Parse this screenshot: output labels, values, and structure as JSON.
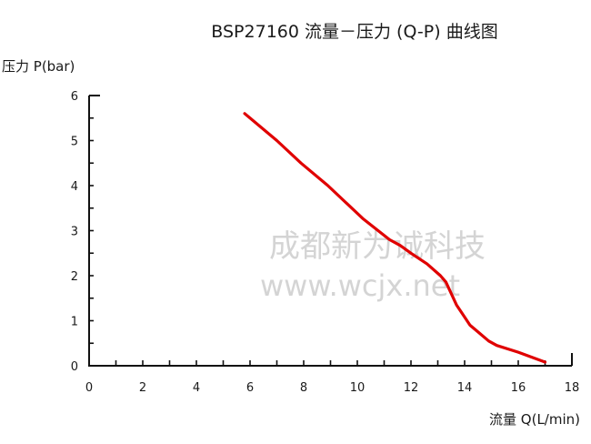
{
  "chart_data": {
    "type": "line",
    "title": "BSP27160 流量－压力 (Q-P) 曲线图",
    "xlabel": "流量 Q(L/min)",
    "ylabel": "压力 P(bar)",
    "xlim": [
      0,
      18
    ],
    "ylim": [
      0,
      6
    ],
    "x_ticks": [
      0,
      2,
      4,
      6,
      8,
      10,
      12,
      14,
      16,
      18
    ],
    "x_minor_step": 1,
    "y_ticks": [
      0,
      1,
      2,
      3,
      4,
      5,
      6
    ],
    "y_minor_step": 0.5,
    "grid": false,
    "legend": null,
    "series": [
      {
        "name": "BSP27160 Q-P",
        "color": "#e00000",
        "x": [
          5.8,
          7.0,
          7.9,
          8.9,
          10.2,
          11.2,
          11.6,
          12.0,
          12.6,
          13.1,
          13.3,
          13.7,
          14.2,
          14.5,
          14.9,
          15.2,
          16.0,
          17.0
        ],
        "y": [
          5.6,
          5.0,
          4.5,
          4.0,
          3.27,
          2.8,
          2.67,
          2.5,
          2.26,
          2.0,
          1.86,
          1.35,
          0.9,
          0.75,
          0.55,
          0.45,
          0.3,
          0.08
        ]
      }
    ],
    "watermark": {
      "line1": "成都新为诚科技",
      "line2": "www.wcjx.net"
    }
  },
  "colors": {
    "axis": "#111111",
    "curve": "#e00000",
    "watermark": "#d4d4d4"
  }
}
